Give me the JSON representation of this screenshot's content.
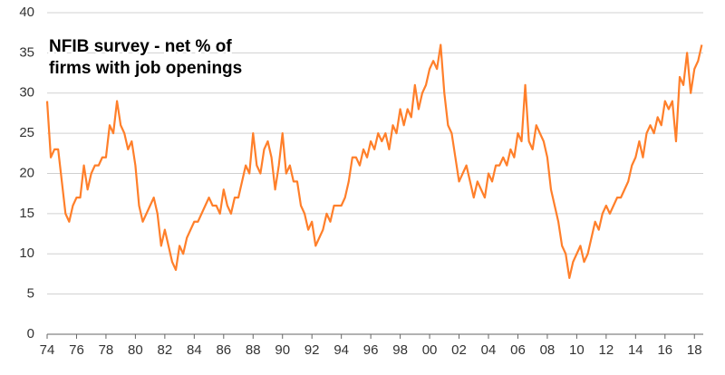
{
  "chart_data": {
    "type": "line",
    "annotation": [
      "NFIB survey - net % of",
      "firms with job openings"
    ],
    "xlim": [
      1974,
      2018.6
    ],
    "ylim": [
      0,
      40
    ],
    "yticks": [
      0,
      5,
      10,
      15,
      20,
      25,
      30,
      35,
      40
    ],
    "xticks": [
      {
        "value": 1974,
        "label": "74"
      },
      {
        "value": 1976,
        "label": "76"
      },
      {
        "value": 1978,
        "label": "78"
      },
      {
        "value": 1980,
        "label": "80"
      },
      {
        "value": 1982,
        "label": "82"
      },
      {
        "value": 1984,
        "label": "84"
      },
      {
        "value": 1986,
        "label": "86"
      },
      {
        "value": 1988,
        "label": "88"
      },
      {
        "value": 1990,
        "label": "90"
      },
      {
        "value": 1992,
        "label": "92"
      },
      {
        "value": 1994,
        "label": "94"
      },
      {
        "value": 1996,
        "label": "96"
      },
      {
        "value": 1998,
        "label": "98"
      },
      {
        "value": 2000,
        "label": "00"
      },
      {
        "value": 2002,
        "label": "02"
      },
      {
        "value": 2004,
        "label": "04"
      },
      {
        "value": 2006,
        "label": "06"
      },
      {
        "value": 2008,
        "label": "08"
      },
      {
        "value": 2010,
        "label": "10"
      },
      {
        "value": 2012,
        "label": "12"
      },
      {
        "value": 2014,
        "label": "14"
      },
      {
        "value": 2016,
        "label": "16"
      },
      {
        "value": 2018,
        "label": "18"
      }
    ],
    "grid": true,
    "x": [
      1974,
      1974.25,
      1974.5,
      1974.75,
      1975,
      1975.25,
      1975.5,
      1975.75,
      1976,
      1976.25,
      1976.5,
      1976.75,
      1977,
      1977.25,
      1977.5,
      1977.75,
      1978,
      1978.25,
      1978.5,
      1978.75,
      1979,
      1979.25,
      1979.5,
      1979.75,
      1980,
      1980.25,
      1980.5,
      1980.75,
      1981,
      1981.25,
      1981.5,
      1981.75,
      1982,
      1982.25,
      1982.5,
      1982.75,
      1983,
      1983.25,
      1983.5,
      1983.75,
      1984,
      1984.25,
      1984.5,
      1984.75,
      1985,
      1985.25,
      1985.5,
      1985.75,
      1986,
      1986.25,
      1986.5,
      1986.75,
      1987,
      1987.25,
      1987.5,
      1987.75,
      1988,
      1988.25,
      1988.5,
      1988.75,
      1989,
      1989.25,
      1989.5,
      1989.75,
      1990,
      1990.25,
      1990.5,
      1990.75,
      1991,
      1991.25,
      1991.5,
      1991.75,
      1992,
      1992.25,
      1992.5,
      1992.75,
      1993,
      1993.25,
      1993.5,
      1993.75,
      1994,
      1994.25,
      1994.5,
      1994.75,
      1995,
      1995.25,
      1995.5,
      1995.75,
      1996,
      1996.25,
      1996.5,
      1996.75,
      1997,
      1997.25,
      1997.5,
      1997.75,
      1998,
      1998.25,
      1998.5,
      1998.75,
      1999,
      1999.25,
      1999.5,
      1999.75,
      2000,
      2000.25,
      2000.5,
      2000.75,
      2001,
      2001.25,
      2001.5,
      2001.75,
      2002,
      2002.25,
      2002.5,
      2002.75,
      2003,
      2003.25,
      2003.5,
      2003.75,
      2004,
      2004.25,
      2004.5,
      2004.75,
      2005,
      2005.25,
      2005.5,
      2005.75,
      2006,
      2006.25,
      2006.5,
      2006.75,
      2007,
      2007.25,
      2007.5,
      2007.75,
      2008,
      2008.25,
      2008.5,
      2008.75,
      2009,
      2009.25,
      2009.5,
      2009.75,
      2010,
      2010.25,
      2010.5,
      2010.75,
      2011,
      2011.25,
      2011.5,
      2011.75,
      2012,
      2012.25,
      2012.5,
      2012.75,
      2013,
      2013.25,
      2013.5,
      2013.75,
      2014,
      2014.25,
      2014.5,
      2014.75,
      2015,
      2015.25,
      2015.5,
      2015.75,
      2016,
      2016.25,
      2016.5,
      2016.75,
      2017,
      2017.25,
      2017.5,
      2017.75,
      2018,
      2018.25,
      2018.5
    ],
    "series": [
      {
        "color": "#ff7f2a",
        "values": [
          29,
          22,
          23,
          23,
          19,
          15,
          14,
          16,
          17,
          17,
          21,
          18,
          20,
          21,
          21,
          22,
          22,
          26,
          25,
          29,
          26,
          25,
          23,
          24,
          21,
          16,
          14,
          15,
          16,
          17,
          15,
          11,
          13,
          11,
          9,
          8,
          11,
          10,
          12,
          13,
          14,
          14,
          15,
          16,
          17,
          16,
          16,
          15,
          18,
          16,
          15,
          17,
          17,
          19,
          21,
          20,
          25,
          21,
          20,
          23,
          24,
          22,
          18,
          21,
          25,
          20,
          21,
          19,
          19,
          16,
          15,
          13,
          14,
          11,
          12,
          13,
          15,
          14,
          16,
          16,
          16,
          17,
          19,
          22,
          22,
          21,
          23,
          22,
          24,
          23,
          25,
          24,
          25,
          23,
          26,
          25,
          28,
          26,
          28,
          27,
          31,
          28,
          30,
          31,
          33,
          34,
          33,
          36,
          30,
          26,
          25,
          22,
          19,
          20,
          21,
          19,
          17,
          19,
          18,
          17,
          20,
          19,
          21,
          21,
          22,
          21,
          23,
          22,
          25,
          24,
          31,
          24,
          23,
          26,
          25,
          24,
          22,
          18,
          16,
          14,
          11,
          10,
          7,
          9,
          10,
          11,
          9,
          10,
          12,
          14,
          13,
          15,
          16,
          15,
          16,
          17,
          17,
          18,
          19,
          21,
          22,
          24,
          22,
          25,
          26,
          25,
          27,
          26,
          29,
          28,
          29,
          24,
          32,
          31,
          35,
          30,
          33,
          34,
          36
        ]
      }
    ]
  }
}
